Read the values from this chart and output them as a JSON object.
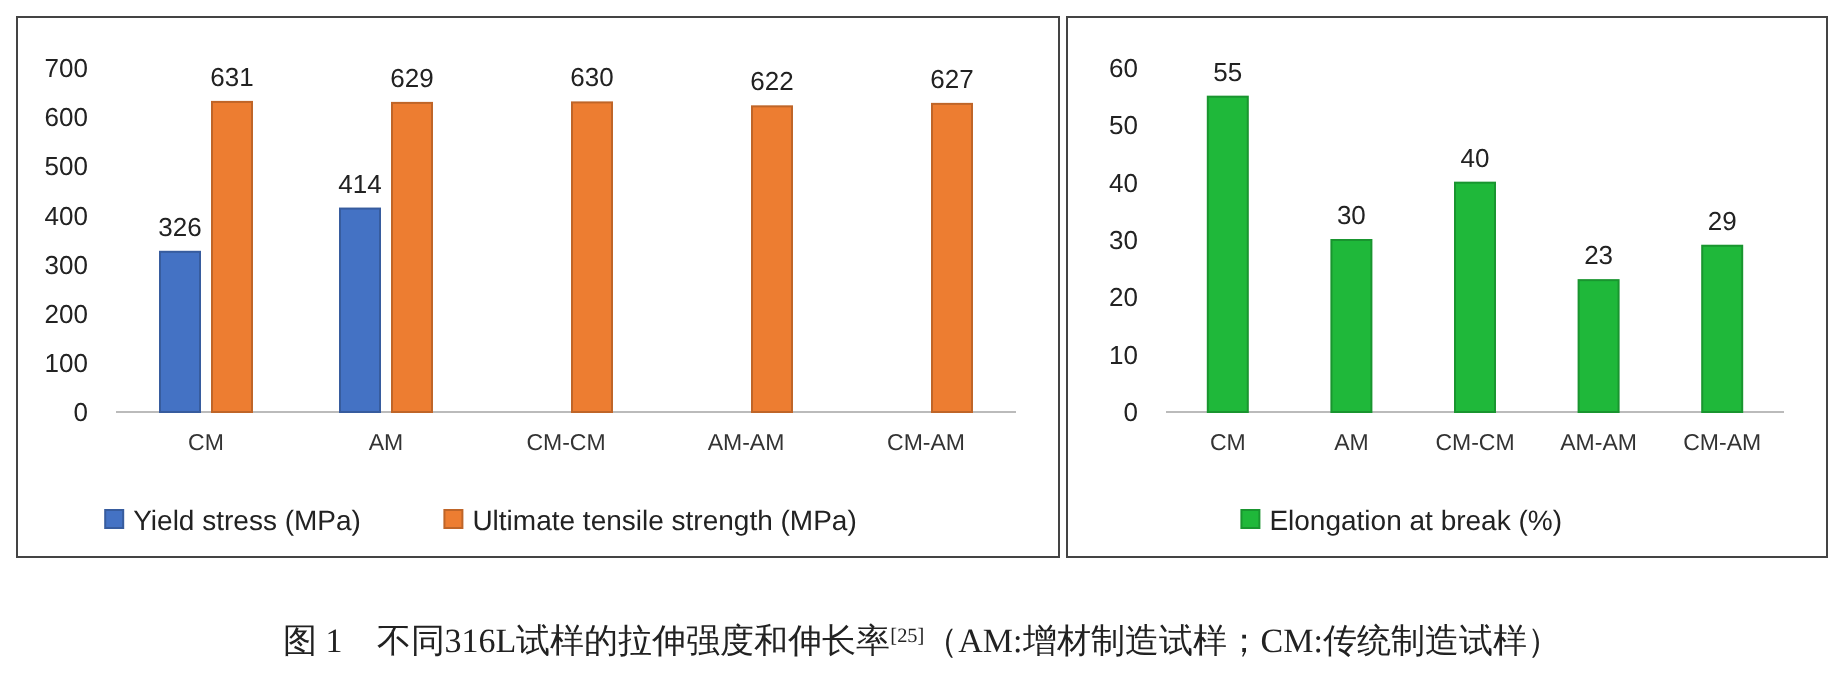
{
  "chart_data": [
    {
      "type": "bar",
      "categories": [
        "CM",
        "AM",
        "CM-CM",
        "AM-AM",
        "CM-AM"
      ],
      "series": [
        {
          "name": "Yield stress (MPa)",
          "color": "#4472c4",
          "values": [
            326,
            414,
            null,
            null,
            null
          ]
        },
        {
          "name": "Ultimate tensile strength (MPa)",
          "color": "#ed7d31",
          "values": [
            631,
            629,
            630,
            622,
            627
          ]
        }
      ],
      "ylim": [
        0,
        700
      ],
      "yticks": [
        0,
        100,
        200,
        300,
        400,
        500,
        600,
        700
      ],
      "grid": false,
      "legend": "bottom",
      "data_labels": true,
      "annotations": [
        "图 1　不同316L试样的拉伸强度和伸长率$^{[25]}$（AM:增材制造试样；CM:传统制造试样）"
      ]
    },
    {
      "type": "bar",
      "categories": [
        "CM",
        "AM",
        "CM-CM",
        "AM-AM",
        "CM-AM"
      ],
      "series": [
        {
          "name": "Elongation at break (%)",
          "color": "#1fb83a",
          "values": [
            55,
            30,
            40,
            23,
            29
          ]
        }
      ],
      "ylim": [
        0,
        60
      ],
      "yticks": [
        0,
        10,
        20,
        30,
        40,
        50,
        60
      ],
      "grid": false,
      "legend": "bottom",
      "data_labels": true
    }
  ]
}
